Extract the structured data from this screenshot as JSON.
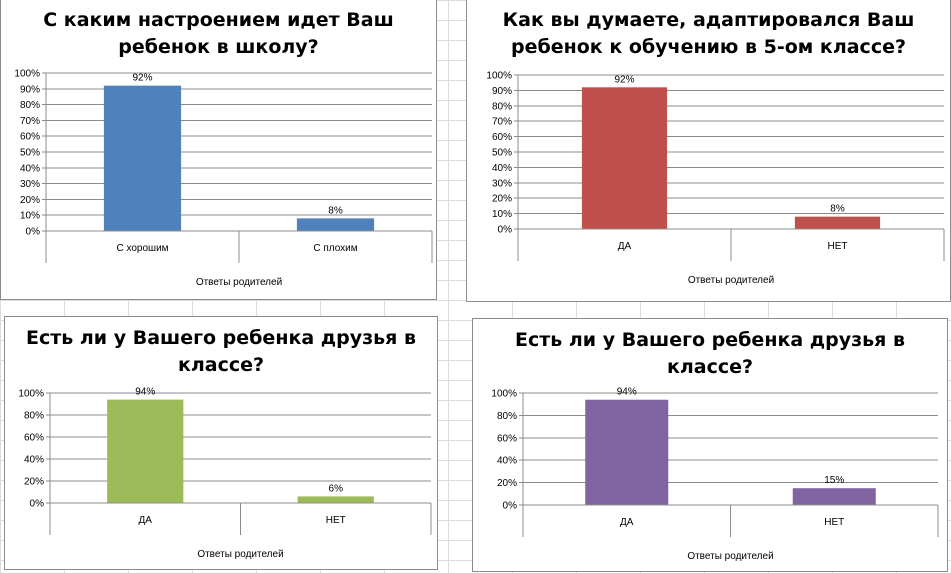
{
  "chart_data": [
    {
      "type": "bar",
      "title": [
        "С каким настроением идет Ваш",
        "ребенок в школу?"
      ],
      "xlabel": "Ответы родителей",
      "categories": [
        "С хорошим",
        "С плохим"
      ],
      "values": [
        92,
        8
      ],
      "data_labels": [
        "92%",
        "8%"
      ],
      "yticks": [
        "0%",
        "10%",
        "20%",
        "30%",
        "40%",
        "50%",
        "60%",
        "70%",
        "80%",
        "90%",
        "100%"
      ],
      "ylim": [
        0,
        100
      ],
      "color": "#4f81bd",
      "grid": true
    },
    {
      "type": "bar",
      "title": [
        "Как вы думаете, адаптировался Ваш",
        "ребенок к обучению в 5-ом классе?"
      ],
      "xlabel": "Ответы родителей",
      "categories": [
        "ДА",
        "НЕТ"
      ],
      "values": [
        92,
        8
      ],
      "data_labels": [
        "92%",
        "8%"
      ],
      "yticks": [
        "0%",
        "10%",
        "20%",
        "30%",
        "40%",
        "50%",
        "60%",
        "70%",
        "80%",
        "90%",
        "100%"
      ],
      "ylim": [
        0,
        100
      ],
      "color": "#c0504d",
      "grid": true
    },
    {
      "type": "bar",
      "title": [
        "Есть ли у  Вашего ребенка друзья в",
        "классе?"
      ],
      "xlabel": "Ответы родителей",
      "categories": [
        "ДА",
        "НЕТ"
      ],
      "values": [
        94,
        6
      ],
      "data_labels": [
        "94%",
        "6%"
      ],
      "yticks": [
        "0%",
        "20%",
        "40%",
        "60%",
        "80%",
        "100%"
      ],
      "ylim": [
        0,
        100
      ],
      "color": "#9bbb59",
      "grid": true
    },
    {
      "type": "bar",
      "title": [
        "Есть ли у  Вашего ребенка друзья в",
        "классе?"
      ],
      "xlabel": "Ответы родителей",
      "categories": [
        "ДА",
        "НЕТ"
      ],
      "values": [
        94,
        15
      ],
      "data_labels": [
        "94%",
        "15%"
      ],
      "yticks": [
        "0%",
        "20%",
        "40%",
        "60%",
        "80%",
        "100%"
      ],
      "ylim": [
        0,
        100
      ],
      "color": "#8064a2",
      "grid": true
    }
  ]
}
